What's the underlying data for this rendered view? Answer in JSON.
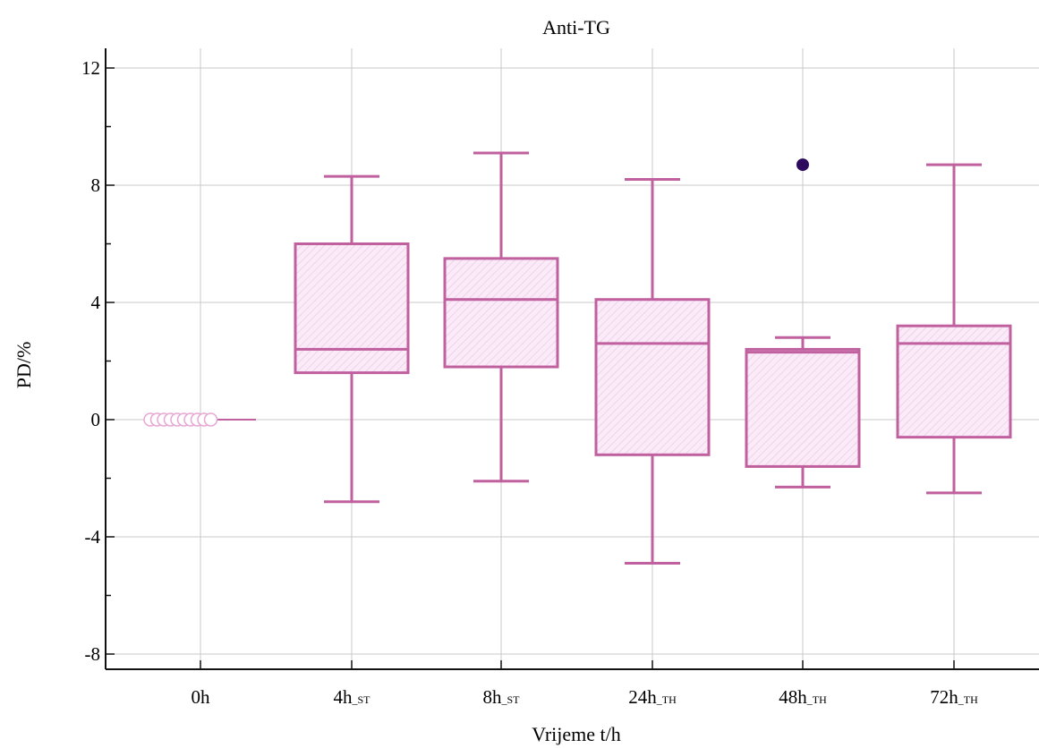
{
  "chart_data": {
    "type": "box",
    "title": "Anti-TG",
    "xlabel": "Vrijeme t/h",
    "ylabel": "PD/%",
    "ylim": [
      -8,
      12
    ],
    "yticks": [
      12,
      8,
      4,
      0,
      -4,
      -8
    ],
    "grid": true,
    "categories": [
      {
        "main": "0h",
        "sub": ""
      },
      {
        "main": "4h",
        "sub": "_ST"
      },
      {
        "main": "8h",
        "sub": "_ST"
      },
      {
        "main": "24h",
        "sub": "_TH"
      },
      {
        "main": "48h",
        "sub": "_TH"
      },
      {
        "main": "72h",
        "sub": "_TH"
      }
    ],
    "boxes": [
      {
        "min": 0,
        "q1": 0,
        "median": 0,
        "q3": 0,
        "max": 0,
        "outliers": [
          0,
          0,
          0,
          0,
          0,
          0,
          0,
          0,
          0,
          0
        ],
        "outlier_style": "open"
      },
      {
        "min": -2.8,
        "q1": 1.6,
        "median": 2.4,
        "q3": 6.0,
        "max": 8.3,
        "outliers": []
      },
      {
        "min": -2.1,
        "q1": 1.8,
        "median": 4.1,
        "q3": 5.5,
        "max": 9.1,
        "outliers": []
      },
      {
        "min": -4.9,
        "q1": -1.2,
        "median": 2.6,
        "q3": 4.1,
        "max": 8.2,
        "outliers": []
      },
      {
        "min": -2.3,
        "q1": -1.6,
        "median": 2.3,
        "q3": 2.4,
        "max": 2.8,
        "outliers": [
          8.7
        ],
        "outlier_style": "filled"
      },
      {
        "min": -2.5,
        "q1": -0.6,
        "median": 2.6,
        "q3": 3.2,
        "max": 8.7,
        "outliers": []
      }
    ],
    "colors": {
      "box_stroke": "#c0609f",
      "box_fill": "#fbeaf8",
      "hatch": "#efd3ea",
      "outlier_filled": "#2e0a5e",
      "outlier_open": "#e7a7d4",
      "grid": "#c8c8c8",
      "axis": "#111111"
    }
  }
}
